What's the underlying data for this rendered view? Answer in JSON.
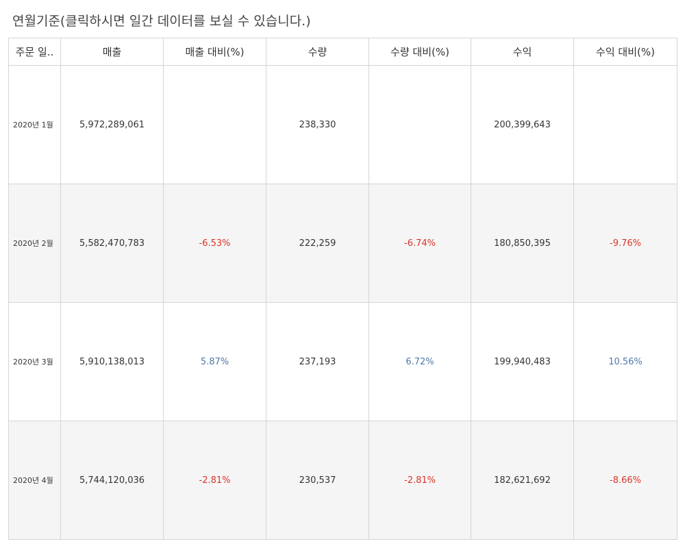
{
  "title": "연월기준(클릭하시면 일간 데이터를 보실 수 있습니다.)",
  "colors": {
    "negative": "#d9342b",
    "positive": "#4e79a7",
    "alt_row": "#f5f5f5",
    "border": "#d4d4d4"
  },
  "chart_data": {
    "type": "table",
    "title": "연월기준(클릭하시면 일간 데이터를 보실 수 있습니다.)",
    "columns": [
      "주문 일..",
      "매출",
      "매출 대비(%)",
      "수량",
      "수량 대비(%)",
      "수익",
      "수익 대비(%)"
    ],
    "rows": [
      [
        "2020년 1월",
        "5,972,289,061",
        "",
        "238,330",
        "",
        "200,399,643",
        ""
      ],
      [
        "2020년 2월",
        "5,582,470,783",
        "-6.53%",
        "222,259",
        "-6.74%",
        "180,850,395",
        "-9.76%"
      ],
      [
        "2020년 3월",
        "5,910,138,013",
        "5.87%",
        "237,193",
        "6.72%",
        "199,940,483",
        "10.56%"
      ],
      [
        "2020년 4월",
        "5,744,120,036",
        "-2.81%",
        "230,537",
        "-2.81%",
        "182,621,692",
        "-8.66%"
      ]
    ]
  }
}
